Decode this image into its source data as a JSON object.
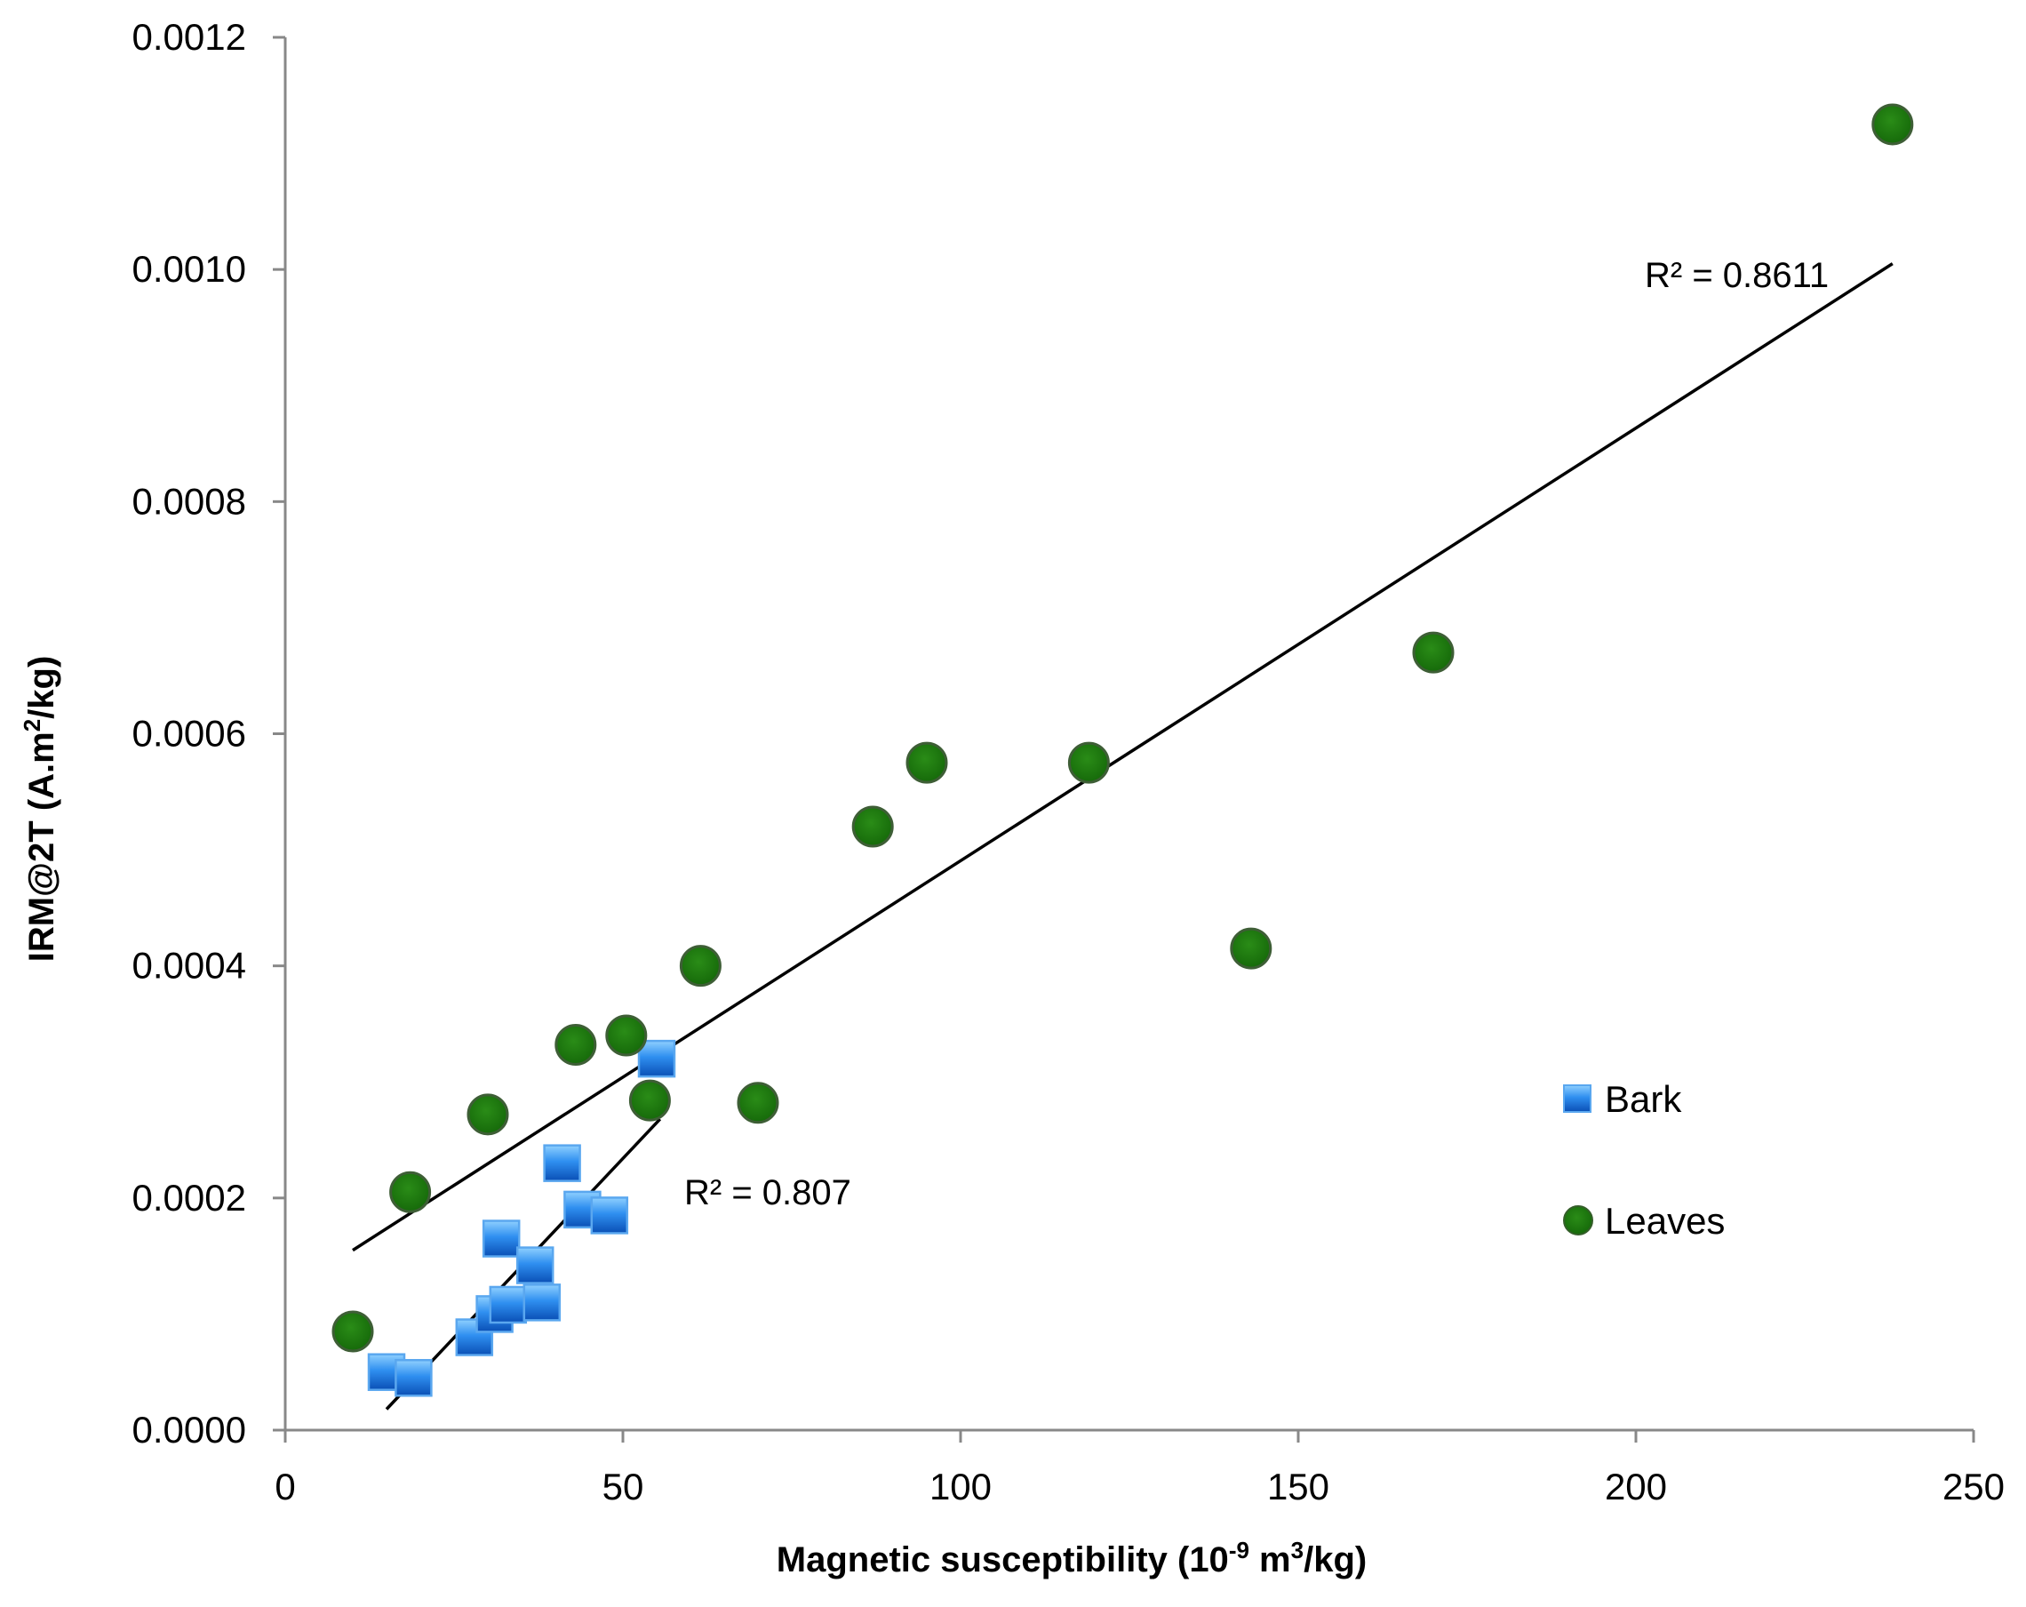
{
  "chart_data": {
    "type": "scatter",
    "title": "",
    "xlabel": "Magnetic susceptibility (10",
    "xlabel_sup": "-9",
    "xlabel_mid": " m",
    "xlabel_sup2": "3",
    "xlabel_end": "/kg)",
    "ylabel": "IRM@2T  (A.m",
    "ylabel_sup": "2",
    "ylabel_end": "/kg)",
    "xlim": [
      0,
      250
    ],
    "ylim": [
      0,
      0.0012
    ],
    "x_ticks": [
      0,
      50,
      100,
      150,
      200,
      250
    ],
    "x_tick_labels": [
      "0",
      "50",
      "100",
      "150",
      "200",
      "250"
    ],
    "y_ticks": [
      0,
      0.0002,
      0.0004,
      0.0006,
      0.0008,
      0.001,
      0.0012
    ],
    "y_tick_labels": [
      "0.0000",
      "0.0002",
      "0.0004",
      "0.0006",
      "0.0008",
      "0.0010",
      "0.0012"
    ],
    "grid": false,
    "legend_position": "right-middle",
    "series": [
      {
        "name": "Bark",
        "marker": "square",
        "color": "#1e7be6",
        "x": [
          15,
          19,
          28,
          31,
          32,
          33,
          37,
          38,
          41,
          44,
          48,
          55
        ],
        "y": [
          5e-05,
          4.5e-05,
          8e-05,
          0.0001,
          0.000165,
          0.000108,
          0.000142,
          0.00011,
          0.00023,
          0.00019,
          0.000185,
          0.00032
        ],
        "trendline": {
          "x": [
            15,
            55.5
          ],
          "y": [
            1.8e-05,
            0.000268
          ]
        },
        "r2_label": "R² = 0.807"
      },
      {
        "name": "Leaves",
        "marker": "circle",
        "color": "#1f7a0f",
        "x": [
          10,
          18.5,
          30,
          43,
          50.5,
          54,
          61.5,
          70,
          87,
          95,
          119,
          143,
          170,
          238
        ],
        "y": [
          8.5e-05,
          0.000205,
          0.000272,
          0.000332,
          0.00034,
          0.000284,
          0.0004,
          0.000282,
          0.00052,
          0.000575,
          0.000575,
          0.000415,
          0.00067,
          0.001125
        ],
        "trendline": {
          "x": [
            10,
            238
          ],
          "y": [
            0.000155,
            0.001005
          ]
        },
        "r2_label": "R² = 0.8611"
      }
    ]
  }
}
